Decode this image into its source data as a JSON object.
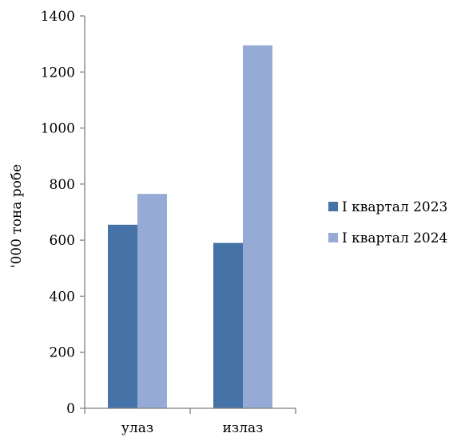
{
  "chart_data": {
    "type": "bar",
    "categories": [
      "улаз",
      "излаз"
    ],
    "series": [
      {
        "name": "I квартал 2023",
        "values": [
          655,
          590
        ],
        "color": "#4572A7"
      },
      {
        "name": "I квартал 2024",
        "values": [
          765,
          1295
        ],
        "color": "#95ABD5"
      }
    ],
    "ylabel": "'000 тона робе",
    "ylim": [
      0,
      1400
    ],
    "yticks": [
      0,
      200,
      400,
      600,
      800,
      1000,
      1200,
      1400
    ],
    "grid": false,
    "legend_position": "right"
  }
}
